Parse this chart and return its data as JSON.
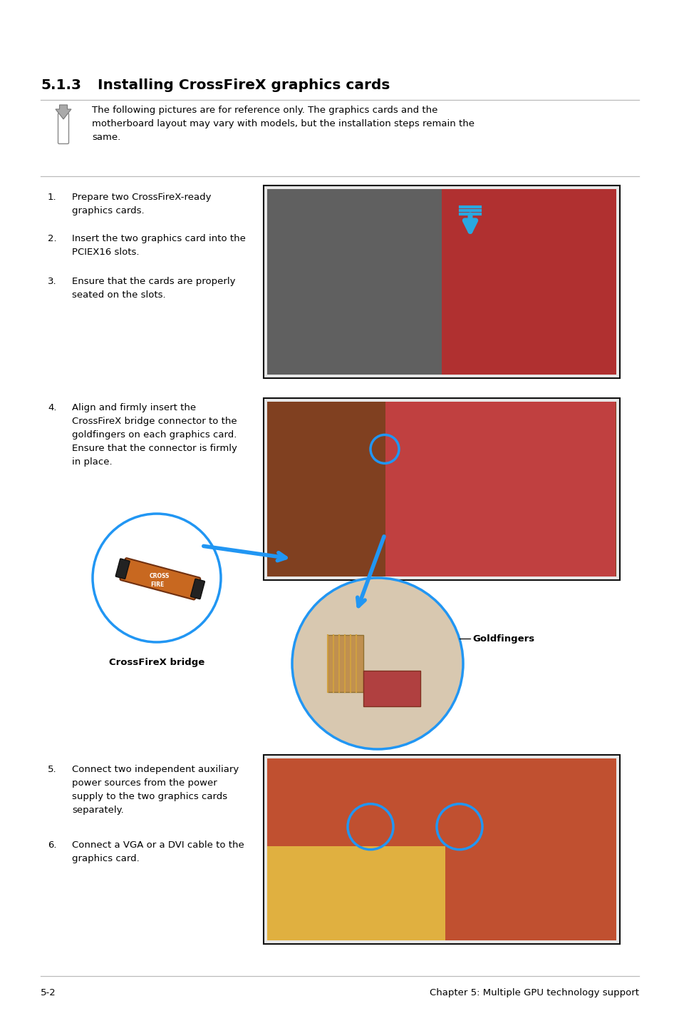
{
  "page_bg": "#ffffff",
  "title_number": "5.1.3",
  "title_text": "Installing CrossFireX graphics cards",
  "title_fontsize": 14.5,
  "note_text": "The following pictures are for reference only. The graphics cards and the\nmotherboard layout may vary with models, but the installation steps remain the\nsame.",
  "note_fontsize": 9.5,
  "steps_1_3": [
    {
      "num": "1.",
      "text": "Prepare two CrossFireX-ready\ngraphics cards."
    },
    {
      "num": "2.",
      "text": "Insert the two graphics card into the\nPCIEX16 slots."
    },
    {
      "num": "3.",
      "text": "Ensure that the cards are properly\nseated on the slots."
    }
  ],
  "step4_num": "4.",
  "step4_text": "Align and firmly insert the\nCrossFireX bridge connector to the\ngoldfingers on each graphics card.\nEnsure that the connector is firmly\nin place.",
  "step5_num": "5.",
  "step5_text": "Connect two independent auxiliary\npower sources from the power\nsupply to the two graphics cards\nseparately.",
  "step6_num": "6.",
  "step6_text": "Connect a VGA or a DVI cable to the\ngraphics card.",
  "label_bridge": "CrossFireX bridge",
  "label_goldfingers": "Goldfingers",
  "footer_left": "5-2",
  "footer_right": "Chapter 5: Multiple GPU technology support",
  "footer_fontsize": 9.5,
  "body_fontsize": 9.5,
  "line_color": "#bbbbbb",
  "circle_color": "#2196F3",
  "bridge_fill": "#c86820",
  "img_bg": "#e8e8e8",
  "text_color": "#000000",
  "note_icon_color": "#888888"
}
